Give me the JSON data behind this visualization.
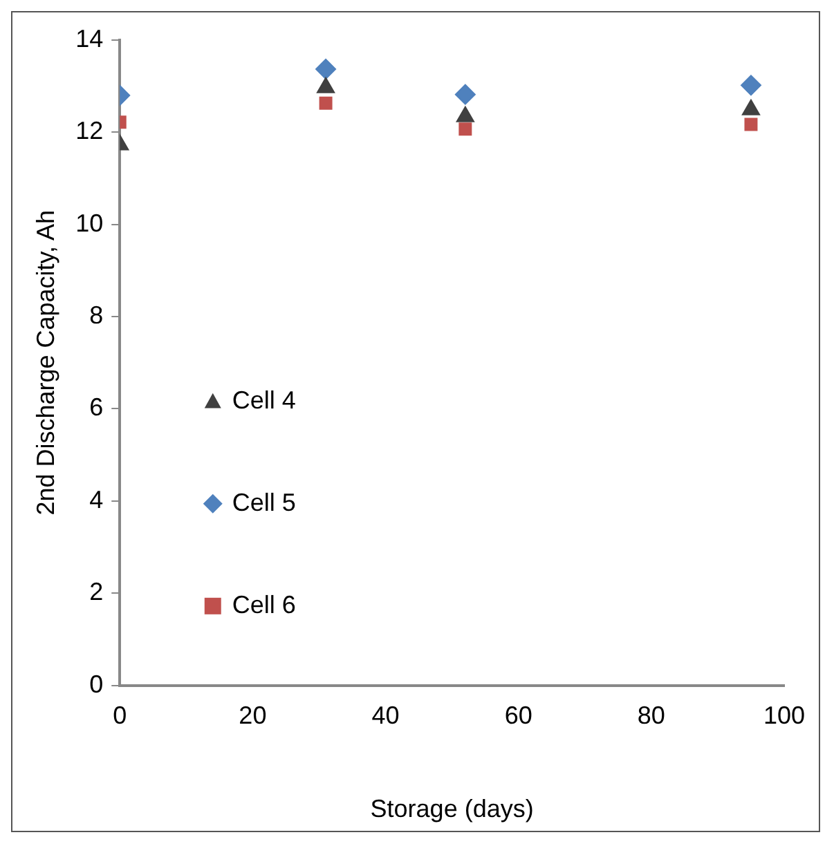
{
  "chart_data": {
    "type": "scatter",
    "xlabel": "Storage (days)",
    "ylabel": "2nd Discharge Capacity, Ah",
    "xlim": [
      0,
      100
    ],
    "xticks": [
      0,
      20,
      40,
      60,
      80,
      100
    ],
    "ylim": [
      0,
      14
    ],
    "yticks": [
      0,
      2,
      4,
      6,
      8,
      10,
      12,
      14
    ],
    "grid": false,
    "legend": "left",
    "x": [
      0,
      31,
      52,
      95
    ],
    "series": [
      {
        "name": "Cell 4",
        "color": "#404040",
        "marker": "triangle",
        "values": [
          11.73,
          12.97,
          12.34,
          12.49
        ]
      },
      {
        "name": "Cell 5",
        "color": "#4f81bd",
        "marker": "diamond",
        "values": [
          12.8,
          13.37,
          12.82,
          13.02
        ]
      },
      {
        "name": "Cell 6",
        "color": "#c0504d",
        "marker": "square",
        "values": [
          12.22,
          12.63,
          12.07,
          12.17
        ]
      }
    ]
  }
}
